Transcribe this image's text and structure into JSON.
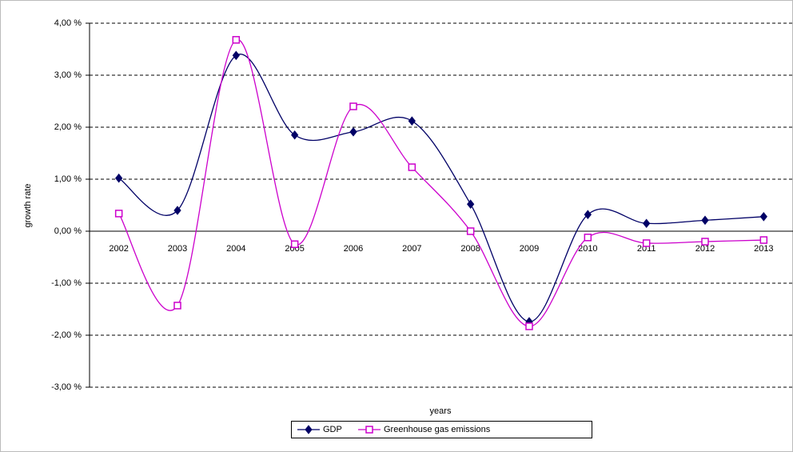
{
  "chart_data": {
    "type": "line",
    "x_label": "years",
    "y_label": "growth rate",
    "categories": [
      "2002",
      "2003",
      "2004",
      "2005",
      "2006",
      "2007",
      "2008",
      "2009",
      "2010",
      "2011",
      "2012",
      "2013"
    ],
    "series": [
      {
        "name": "GDP",
        "color": "#000066",
        "marker": "diamond",
        "values": [
          1.02,
          0.4,
          3.38,
          1.85,
          1.91,
          2.12,
          0.52,
          -1.74,
          0.32,
          0.15,
          0.21,
          0.28
        ]
      },
      {
        "name": "Greenhouse gas emissions",
        "color": "#cc00cc",
        "marker": "square",
        "values": [
          0.34,
          -1.43,
          3.68,
          -0.25,
          2.4,
          1.23,
          0.0,
          -1.83,
          -0.12,
          -0.23,
          -0.2,
          -0.17
        ]
      }
    ],
    "ylim": [
      -3,
      4
    ],
    "yticks": [
      {
        "value": -3,
        "label": "-3,00 %"
      },
      {
        "value": -2,
        "label": "-2,00 %"
      },
      {
        "value": -1,
        "label": "-1,00 %"
      },
      {
        "value": 0,
        "label": "0,00 %"
      },
      {
        "value": 1,
        "label": "1,00 %"
      },
      {
        "value": 2,
        "label": "2,00 %"
      },
      {
        "value": 3,
        "label": "3,00 %"
      },
      {
        "value": 4,
        "label": "4,00 %"
      }
    ],
    "grid": true,
    "smooth": true,
    "legend": "bottom"
  }
}
